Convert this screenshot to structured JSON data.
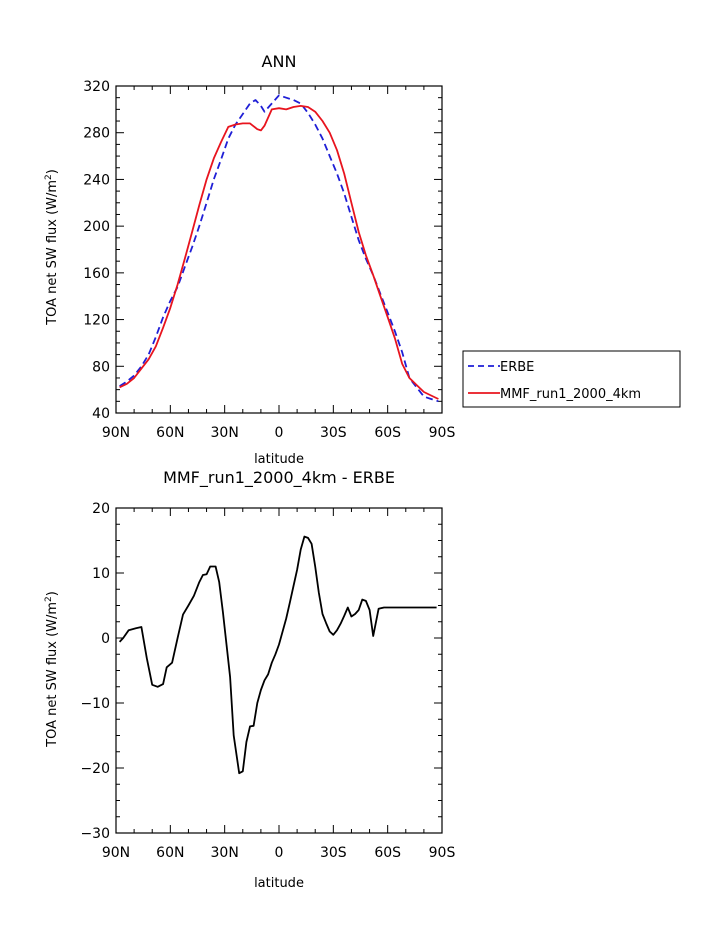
{
  "chart_data": [
    {
      "type": "line",
      "title": "ANN",
      "xlabel": "latitude",
      "ylabel": "TOA net SW flux (W/m²)",
      "ylabel_parts": {
        "prefix": "TOA net SW flux (W/m",
        "sup": "2",
        "suffix": ")"
      },
      "xlim": [
        90,
        -90
      ],
      "ylim": [
        40,
        320
      ],
      "x_ticks": [
        {
          "value": 90,
          "label": "90N"
        },
        {
          "value": 60,
          "label": "60N"
        },
        {
          "value": 30,
          "label": "30N"
        },
        {
          "value": 0,
          "label": "0"
        },
        {
          "value": -30,
          "label": "30S"
        },
        {
          "value": -60,
          "label": "60S"
        },
        {
          "value": -90,
          "label": "90S"
        }
      ],
      "y_ticks": [
        {
          "value": 40,
          "label": "40"
        },
        {
          "value": 80,
          "label": "80"
        },
        {
          "value": 120,
          "label": "120"
        },
        {
          "value": 160,
          "label": "160"
        },
        {
          "value": 200,
          "label": "200"
        },
        {
          "value": 240,
          "label": "240"
        },
        {
          "value": 280,
          "label": "280"
        },
        {
          "value": 320,
          "label": "320"
        }
      ],
      "legend_position": "right",
      "series": [
        {
          "name": "ERBE",
          "color": "#1f1fd6",
          "style": "dashed",
          "x": [
            88,
            84,
            80,
            76,
            72,
            68,
            64,
            60,
            56,
            52,
            48,
            44,
            40,
            36,
            32,
            28,
            24,
            20,
            16,
            13,
            10,
            8,
            4,
            0,
            -4,
            -8,
            -12,
            -16,
            -20,
            -24,
            -28,
            -32,
            -36,
            -40,
            -44,
            -48,
            -52,
            -56,
            -60,
            -64,
            -68,
            -72,
            -76,
            -80,
            -84,
            -88
          ],
          "values": [
            63,
            67,
            72,
            80,
            90,
            105,
            122,
            136,
            148,
            165,
            182,
            200,
            220,
            240,
            257,
            275,
            287,
            296,
            305,
            308,
            303,
            298,
            305,
            312,
            310,
            308,
            305,
            297,
            287,
            275,
            260,
            245,
            228,
            208,
            188,
            172,
            158,
            142,
            126,
            110,
            92,
            70,
            62,
            54,
            52,
            50
          ]
        },
        {
          "name": "MMF_run1_2000_4km",
          "color": "#e8141e",
          "style": "solid",
          "x": [
            88,
            84,
            80,
            76,
            72,
            68,
            64,
            60,
            56,
            52,
            48,
            44,
            40,
            36,
            32,
            28,
            24,
            20,
            16,
            12,
            10,
            8,
            4,
            0,
            -4,
            -8,
            -12,
            -16,
            -20,
            -24,
            -28,
            -32,
            -36,
            -40,
            -44,
            -48,
            -52,
            -56,
            -60,
            -64,
            -68,
            -72,
            -76,
            -80,
            -84,
            -88
          ],
          "values": [
            62,
            65,
            70,
            78,
            86,
            97,
            113,
            130,
            150,
            172,
            195,
            218,
            240,
            258,
            272,
            285,
            287,
            288,
            288,
            283,
            282,
            286,
            300,
            301,
            300,
            302,
            303,
            302,
            298,
            290,
            280,
            265,
            245,
            220,
            195,
            175,
            158,
            140,
            122,
            104,
            82,
            70,
            64,
            58,
            55,
            52
          ]
        }
      ]
    },
    {
      "type": "line",
      "title": "MMF_run1_2000_4km - ERBE",
      "xlabel": "latitude",
      "ylabel": "TOA net SW flux (W/m²)",
      "ylabel_parts": {
        "prefix": "TOA net SW flux (W/m",
        "sup": "2",
        "suffix": ")"
      },
      "xlim": [
        90,
        -90
      ],
      "ylim": [
        -30,
        20
      ],
      "x_ticks": [
        {
          "value": 90,
          "label": "90N"
        },
        {
          "value": 60,
          "label": "60N"
        },
        {
          "value": 30,
          "label": "30N"
        },
        {
          "value": 0,
          "label": "0"
        },
        {
          "value": -30,
          "label": "30S"
        },
        {
          "value": -60,
          "label": "60S"
        },
        {
          "value": -90,
          "label": "90S"
        }
      ],
      "y_ticks": [
        {
          "value": -30,
          "label": "−30"
        },
        {
          "value": -20,
          "label": "−20"
        },
        {
          "value": -10,
          "label": "−10"
        },
        {
          "value": 0,
          "label": "0"
        },
        {
          "value": 10,
          "label": "10"
        },
        {
          "value": 20,
          "label": "20"
        }
      ],
      "series": [
        {
          "name": "MMF_run1_2000_4km - ERBE",
          "color": "#000000",
          "style": "solid",
          "x": [
            88,
            86,
            83,
            79,
            76,
            73,
            70,
            67,
            64,
            62,
            59,
            56,
            53,
            50,
            47,
            44,
            42,
            40,
            38,
            35,
            33,
            31,
            29,
            27,
            25,
            22,
            20,
            18,
            16,
            14,
            12,
            10,
            8,
            6,
            4,
            2,
            0,
            -2,
            -4,
            -6,
            -8,
            -10,
            -12,
            -14,
            -16,
            -18,
            -20,
            -22,
            -24,
            -26,
            -28,
            -30,
            -32,
            -34,
            -36,
            -38,
            -40,
            -42,
            -44,
            -46,
            -48,
            -50,
            -52,
            -55,
            -58,
            -61,
            -64,
            -66,
            -68,
            -71,
            -73,
            -76,
            -78,
            -81,
            -84,
            -87
          ],
          "values": [
            -0.6,
            0,
            1.2,
            1.5,
            1.7,
            -3.1,
            -7.2,
            -7.5,
            -7.1,
            -4.5,
            -3.8,
            0,
            3.6,
            5,
            6.5,
            8.6,
            9.7,
            9.8,
            11,
            11,
            8.6,
            4,
            -1,
            -6,
            -15,
            -20.8,
            -20.5,
            -16,
            -13.6,
            -13.5,
            -10,
            -8,
            -6.5,
            -5.6,
            -3.8,
            -2.5,
            -1,
            1,
            3,
            5.5,
            8,
            10.5,
            13.6,
            15.6,
            15.4,
            14.5,
            11,
            7,
            3.7,
            2.3,
            1,
            0.5,
            1.2,
            2.2,
            3.4,
            4.7,
            3.3,
            3.7,
            4.3,
            5.9,
            5.7,
            4.3,
            0.3,
            4.5,
            4.7,
            4.7,
            4.7,
            4.7,
            4.7,
            4.7,
            4.7,
            4.7,
            4.7,
            4.7,
            4.7,
            4.7
          ]
        }
      ]
    }
  ]
}
